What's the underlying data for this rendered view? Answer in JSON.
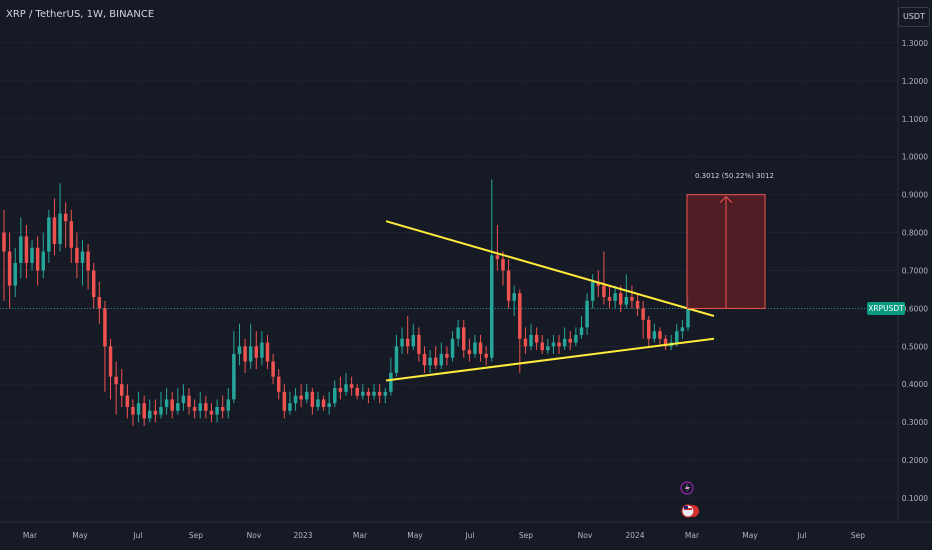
{
  "header": {
    "title": "XRP / TetherUS, 1W, BINANCE"
  },
  "price_axis": {
    "unit_label": "USDT",
    "symbol_tag": "XRPUSDT"
  },
  "measure": {
    "label": "0.3012 (50.22%) 3012",
    "from_price": 0.6,
    "to_price": 0.9
  },
  "colors": {
    "background": "#161a25",
    "bull": "#26a69a",
    "bear": "#ef5350",
    "trendline": "#ffeb3b",
    "last_price_line": "#26a69a",
    "measure_fill": "#5b1e26",
    "measure_stroke": "#ef5350"
  },
  "icons": [
    "lightning-event-icon",
    "us-flag-event-icon"
  ],
  "chart_data": {
    "type": "candlestick",
    "timeframe": "1W",
    "y_ticks": [
      1.3,
      1.2,
      1.1,
      1.0,
      0.9,
      0.8,
      0.7,
      0.6,
      0.5,
      0.4,
      0.3,
      0.2,
      0.1
    ],
    "y_tick_labels": [
      "1.3000",
      "1.2000",
      "1.1000",
      "1.0000",
      "0.9000",
      "0.8000",
      "0.7000",
      "0.6000",
      "0.5000",
      "0.4000",
      "0.3000",
      "0.2000",
      "0.1000"
    ],
    "ylim": [
      0.0,
      1.36
    ],
    "x_labels": [
      "Mar",
      "May",
      "Jul",
      "Sep",
      "Nov",
      "2023",
      "Mar",
      "May",
      "Jul",
      "Sep",
      "Nov",
      "2024",
      "Mar",
      "May",
      "Jul",
      "Sep"
    ],
    "last_price": 0.6,
    "candles": [
      [
        0.8,
        0.75,
        0.86,
        0.62
      ],
      [
        0.75,
        0.66,
        0.8,
        0.6
      ],
      [
        0.66,
        0.72,
        0.76,
        0.63
      ],
      [
        0.72,
        0.79,
        0.84,
        0.68
      ],
      [
        0.79,
        0.72,
        0.82,
        0.68
      ],
      [
        0.72,
        0.76,
        0.78,
        0.7
      ],
      [
        0.76,
        0.7,
        0.79,
        0.66
      ],
      [
        0.7,
        0.75,
        0.8,
        0.68
      ],
      [
        0.75,
        0.84,
        0.86,
        0.72
      ],
      [
        0.84,
        0.77,
        0.89,
        0.74
      ],
      [
        0.77,
        0.85,
        0.93,
        0.75
      ],
      [
        0.85,
        0.83,
        0.88,
        0.76
      ],
      [
        0.83,
        0.76,
        0.86,
        0.72
      ],
      [
        0.76,
        0.72,
        0.8,
        0.68
      ],
      [
        0.72,
        0.75,
        0.78,
        0.66
      ],
      [
        0.75,
        0.7,
        0.77,
        0.65
      ],
      [
        0.7,
        0.63,
        0.72,
        0.6
      ],
      [
        0.63,
        0.6,
        0.67,
        0.56
      ],
      [
        0.6,
        0.5,
        0.62,
        0.38
      ],
      [
        0.5,
        0.42,
        0.52,
        0.36
      ],
      [
        0.42,
        0.4,
        0.46,
        0.32
      ],
      [
        0.4,
        0.37,
        0.44,
        0.34
      ],
      [
        0.37,
        0.34,
        0.4,
        0.31
      ],
      [
        0.34,
        0.32,
        0.36,
        0.29
      ],
      [
        0.32,
        0.35,
        0.38,
        0.3
      ],
      [
        0.35,
        0.31,
        0.37,
        0.29
      ],
      [
        0.31,
        0.33,
        0.36,
        0.3
      ],
      [
        0.33,
        0.32,
        0.36,
        0.3
      ],
      [
        0.32,
        0.34,
        0.38,
        0.31
      ],
      [
        0.34,
        0.36,
        0.39,
        0.32
      ],
      [
        0.36,
        0.33,
        0.38,
        0.31
      ],
      [
        0.33,
        0.35,
        0.39,
        0.32
      ],
      [
        0.35,
        0.37,
        0.4,
        0.33
      ],
      [
        0.37,
        0.34,
        0.39,
        0.32
      ],
      [
        0.34,
        0.33,
        0.36,
        0.31
      ],
      [
        0.33,
        0.35,
        0.38,
        0.31
      ],
      [
        0.35,
        0.33,
        0.37,
        0.31
      ],
      [
        0.33,
        0.32,
        0.35,
        0.3
      ],
      [
        0.32,
        0.34,
        0.36,
        0.3
      ],
      [
        0.34,
        0.33,
        0.37,
        0.31
      ],
      [
        0.33,
        0.36,
        0.39,
        0.31
      ],
      [
        0.36,
        0.48,
        0.54,
        0.35
      ],
      [
        0.48,
        0.5,
        0.56,
        0.45
      ],
      [
        0.5,
        0.46,
        0.52,
        0.43
      ],
      [
        0.46,
        0.5,
        0.56,
        0.44
      ],
      [
        0.5,
        0.47,
        0.54,
        0.44
      ],
      [
        0.47,
        0.51,
        0.54,
        0.45
      ],
      [
        0.51,
        0.46,
        0.53,
        0.44
      ],
      [
        0.46,
        0.42,
        0.48,
        0.4
      ],
      [
        0.42,
        0.38,
        0.44,
        0.36
      ],
      [
        0.38,
        0.33,
        0.4,
        0.31
      ],
      [
        0.33,
        0.35,
        0.38,
        0.32
      ],
      [
        0.35,
        0.37,
        0.39,
        0.33
      ],
      [
        0.37,
        0.36,
        0.4,
        0.34
      ],
      [
        0.36,
        0.38,
        0.4,
        0.35
      ],
      [
        0.38,
        0.34,
        0.39,
        0.32
      ],
      [
        0.34,
        0.36,
        0.38,
        0.33
      ],
      [
        0.36,
        0.34,
        0.37,
        0.33
      ],
      [
        0.34,
        0.35,
        0.38,
        0.32
      ],
      [
        0.35,
        0.39,
        0.41,
        0.34
      ],
      [
        0.39,
        0.38,
        0.42,
        0.36
      ],
      [
        0.38,
        0.4,
        0.43,
        0.37
      ],
      [
        0.4,
        0.39,
        0.42,
        0.37
      ],
      [
        0.39,
        0.37,
        0.4,
        0.36
      ],
      [
        0.37,
        0.38,
        0.4,
        0.36
      ],
      [
        0.38,
        0.37,
        0.39,
        0.35
      ],
      [
        0.37,
        0.38,
        0.4,
        0.36
      ],
      [
        0.38,
        0.37,
        0.4,
        0.35
      ],
      [
        0.37,
        0.38,
        0.39,
        0.35
      ],
      [
        0.38,
        0.43,
        0.47,
        0.37
      ],
      [
        0.43,
        0.5,
        0.53,
        0.42
      ],
      [
        0.5,
        0.52,
        0.55,
        0.48
      ],
      [
        0.52,
        0.5,
        0.58,
        0.48
      ],
      [
        0.5,
        0.53,
        0.56,
        0.49
      ],
      [
        0.53,
        0.48,
        0.55,
        0.46
      ],
      [
        0.48,
        0.45,
        0.5,
        0.43
      ],
      [
        0.45,
        0.47,
        0.49,
        0.43
      ],
      [
        0.47,
        0.45,
        0.5,
        0.44
      ],
      [
        0.45,
        0.48,
        0.51,
        0.44
      ],
      [
        0.48,
        0.47,
        0.5,
        0.45
      ],
      [
        0.47,
        0.52,
        0.54,
        0.46
      ],
      [
        0.52,
        0.55,
        0.57,
        0.5
      ],
      [
        0.55,
        0.49,
        0.57,
        0.47
      ],
      [
        0.49,
        0.48,
        0.52,
        0.46
      ],
      [
        0.48,
        0.51,
        0.53,
        0.47
      ],
      [
        0.51,
        0.48,
        0.53,
        0.46
      ],
      [
        0.48,
        0.47,
        0.5,
        0.45
      ],
      [
        0.47,
        0.74,
        0.94,
        0.46
      ],
      [
        0.74,
        0.73,
        0.82,
        0.7
      ],
      [
        0.73,
        0.7,
        0.75,
        0.66
      ],
      [
        0.7,
        0.62,
        0.73,
        0.6
      ],
      [
        0.62,
        0.64,
        0.66,
        0.58
      ],
      [
        0.64,
        0.52,
        0.65,
        0.43
      ],
      [
        0.52,
        0.5,
        0.55,
        0.48
      ],
      [
        0.5,
        0.53,
        0.56,
        0.49
      ],
      [
        0.53,
        0.51,
        0.55,
        0.49
      ],
      [
        0.51,
        0.49,
        0.53,
        0.48
      ],
      [
        0.49,
        0.5,
        0.52,
        0.48
      ],
      [
        0.5,
        0.51,
        0.53,
        0.48
      ],
      [
        0.51,
        0.5,
        0.53,
        0.48
      ],
      [
        0.5,
        0.52,
        0.55,
        0.49
      ],
      [
        0.52,
        0.51,
        0.54,
        0.49
      ],
      [
        0.51,
        0.53,
        0.55,
        0.5
      ],
      [
        0.53,
        0.55,
        0.58,
        0.52
      ],
      [
        0.55,
        0.62,
        0.64,
        0.53
      ],
      [
        0.62,
        0.67,
        0.69,
        0.6
      ],
      [
        0.67,
        0.66,
        0.7,
        0.63
      ],
      [
        0.66,
        0.63,
        0.75,
        0.61
      ],
      [
        0.63,
        0.62,
        0.66,
        0.6
      ],
      [
        0.62,
        0.64,
        0.66,
        0.6
      ],
      [
        0.64,
        0.61,
        0.66,
        0.59
      ],
      [
        0.61,
        0.63,
        0.69,
        0.6
      ],
      [
        0.63,
        0.62,
        0.66,
        0.6
      ],
      [
        0.62,
        0.6,
        0.64,
        0.58
      ],
      [
        0.6,
        0.57,
        0.62,
        0.52
      ],
      [
        0.57,
        0.52,
        0.58,
        0.5
      ],
      [
        0.52,
        0.54,
        0.56,
        0.51
      ],
      [
        0.54,
        0.52,
        0.55,
        0.5
      ],
      [
        0.52,
        0.5,
        0.53,
        0.49
      ],
      [
        0.5,
        0.51,
        0.53,
        0.49
      ],
      [
        0.51,
        0.54,
        0.56,
        0.5
      ],
      [
        0.54,
        0.55,
        0.57,
        0.52
      ],
      [
        0.55,
        0.6,
        0.63,
        0.54
      ]
    ],
    "trendlines": [
      {
        "name": "descending resistance",
        "from": [
          0.83,
          0
        ],
        "to": [
          0.58,
          1
        ]
      },
      {
        "name": "ascending support",
        "from": [
          0.41,
          0
        ],
        "to": [
          0.52,
          1
        ]
      }
    ]
  }
}
